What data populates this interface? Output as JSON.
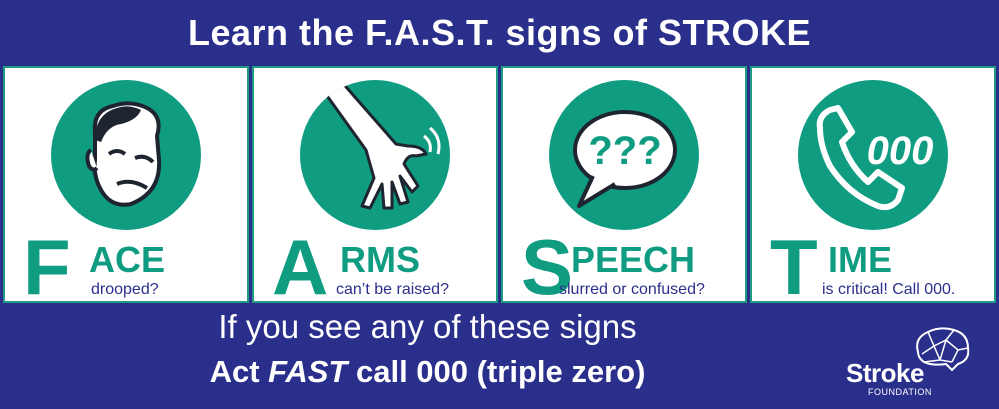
{
  "title": "Learn the F.A.S.T. signs of STROKE",
  "panels": [
    {
      "big_letter": "F",
      "rest": "ACE",
      "sub": "drooped?",
      "icon": "face-icon"
    },
    {
      "big_letter": "A",
      "rest": "RMS",
      "sub": "can’t be raised?",
      "icon": "arm-icon"
    },
    {
      "big_letter": "S",
      "rest": "PEECH",
      "sub": "slurred or confused?",
      "icon": "speech-bubble-icon"
    },
    {
      "big_letter": "T",
      "rest": "IME",
      "sub": "is critical! Call 000.",
      "icon": "phone-icon"
    }
  ],
  "speech_bubble_text": "???",
  "phone_number": "000",
  "footer": {
    "line1": "If you see any of these signs",
    "line2_pre": "Act ",
    "line2_em": "FAST",
    "line2_post": " call 000 (triple zero)"
  },
  "logo": {
    "word": "Stroke",
    "sub": "FOUNDATION"
  },
  "colors": {
    "navy": "#2b2f8c",
    "teal": "#0f9c81",
    "white": "#ffffff"
  }
}
